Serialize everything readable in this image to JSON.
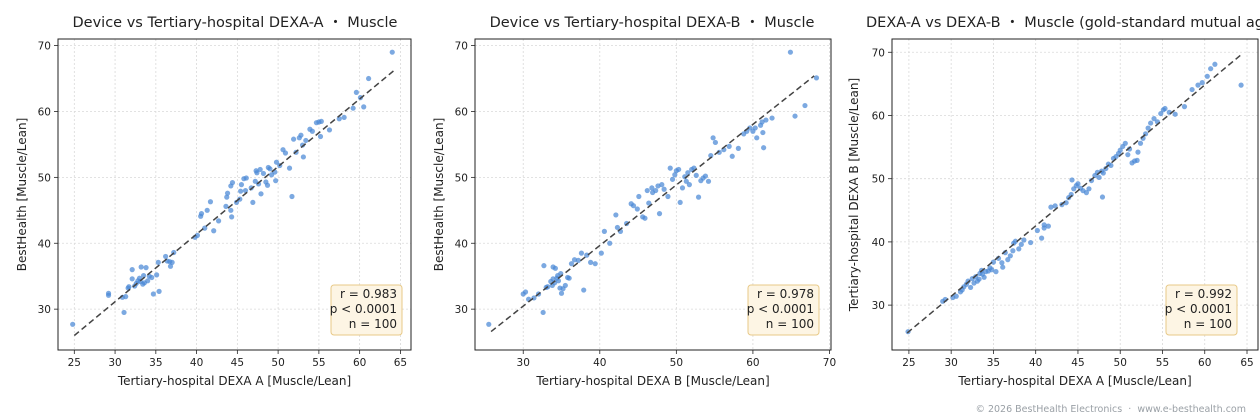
{
  "footer": {
    "copyright": "© 2026 BestHealth Electronics",
    "separator": "·",
    "website": "www.e-besthealth.com"
  },
  "style": {
    "point_color": "#4a88d6",
    "line_color": "#444444",
    "box_fill": "#fdf5e4",
    "box_stroke": "#e8c987"
  },
  "chart_data": [
    {
      "type": "scatter",
      "title": "Device vs Tertiary-hospital DEXA-A  ・  Muscle",
      "xlabel": "Tertiary-hospital DEXA A [Muscle/Lean]",
      "ylabel": "BestHealth [Muscle/Lean]",
      "xlim": [
        23.0,
        66.3
      ],
      "ylim": [
        23.8,
        71.0
      ],
      "xticks": [
        25,
        30,
        35,
        40,
        45,
        50,
        55,
        60,
        65
      ],
      "yticks": [
        30,
        40,
        50,
        60,
        70
      ],
      "grid": true,
      "identity_line": {
        "x": [
          25,
          64.2
        ],
        "y": [
          26,
          66.2
        ]
      },
      "stats": {
        "r": "r = 0.983",
        "p": "p < 0.0001",
        "n": "n = 100"
      },
      "stats_position": "bottom-right",
      "points": [
        [
          24.8,
          27.7
        ],
        [
          29.2,
          32.4
        ],
        [
          29.2,
          32.1
        ],
        [
          30.9,
          31.8
        ],
        [
          31.1,
          29.5
        ],
        [
          31.3,
          31.9
        ],
        [
          31.7,
          33.4
        ],
        [
          31.6,
          33.2
        ],
        [
          32.1,
          34.6
        ],
        [
          32.1,
          36.0
        ],
        [
          32.4,
          33.5
        ],
        [
          32.6,
          33.9
        ],
        [
          32.8,
          34.3
        ],
        [
          33.0,
          34.7
        ],
        [
          33.1,
          34.2
        ],
        [
          33.4,
          33.8
        ],
        [
          33.6,
          34.0
        ],
        [
          33.2,
          36.4
        ],
        [
          33.8,
          36.3
        ],
        [
          33.5,
          35.1
        ],
        [
          34.2,
          35.0
        ],
        [
          34.5,
          34.8
        ],
        [
          34.0,
          34.3
        ],
        [
          35.1,
          35.2
        ],
        [
          34.7,
          32.3
        ],
        [
          35.4,
          32.7
        ],
        [
          35.3,
          37.1
        ],
        [
          36.2,
          38.0
        ],
        [
          36.4,
          37.3
        ],
        [
          36.7,
          37.2
        ],
        [
          37.0,
          37.1
        ],
        [
          36.8,
          36.5
        ],
        [
          37.2,
          38.6
        ],
        [
          39.8,
          40.9
        ],
        [
          40.1,
          41.2
        ],
        [
          40.5,
          44.1
        ],
        [
          40.6,
          44.5
        ],
        [
          41.0,
          42.3
        ],
        [
          41.3,
          45.0
        ],
        [
          41.7,
          46.3
        ],
        [
          42.7,
          43.4
        ],
        [
          42.1,
          41.9
        ],
        [
          43.6,
          45.6
        ],
        [
          43.7,
          47.0
        ],
        [
          43.8,
          47.6
        ],
        [
          44.2,
          48.7
        ],
        [
          44.2,
          45.0
        ],
        [
          44.3,
          44.0
        ],
        [
          44.4,
          49.2
        ],
        [
          44.9,
          46.2
        ],
        [
          45.3,
          46.7
        ],
        [
          45.4,
          47.9
        ],
        [
          45.5,
          48.9
        ],
        [
          45.8,
          49.8
        ],
        [
          46.1,
          49.9
        ],
        [
          46.0,
          48.0
        ],
        [
          46.7,
          48.4
        ],
        [
          46.9,
          46.2
        ],
        [
          47.2,
          49.4
        ],
        [
          47.4,
          50.7
        ],
        [
          47.6,
          49.0
        ],
        [
          47.8,
          51.2
        ],
        [
          47.3,
          51.0
        ],
        [
          47.9,
          47.5
        ],
        [
          48.2,
          50.6
        ],
        [
          48.5,
          49.3
        ],
        [
          48.7,
          48.8
        ],
        [
          48.8,
          51.5
        ],
        [
          49.2,
          50.4
        ],
        [
          49.0,
          51.3
        ],
        [
          49.6,
          50.8
        ],
        [
          49.8,
          52.3
        ],
        [
          49.7,
          49.5
        ],
        [
          50.2,
          51.8
        ],
        [
          50.6,
          54.2
        ],
        [
          50.9,
          53.7
        ],
        [
          51.4,
          51.4
        ],
        [
          51.7,
          47.1
        ],
        [
          51.9,
          55.8
        ],
        [
          52.2,
          53.8
        ],
        [
          52.6,
          56.0
        ],
        [
          52.8,
          56.4
        ],
        [
          53.0,
          54.9
        ],
        [
          53.4,
          55.6
        ],
        [
          53.1,
          53.1
        ],
        [
          53.9,
          57.3
        ],
        [
          54.2,
          57.0
        ],
        [
          54.7,
          58.3
        ],
        [
          55.0,
          58.4
        ],
        [
          55.3,
          58.5
        ],
        [
          55.2,
          56.2
        ],
        [
          56.3,
          57.2
        ],
        [
          57.5,
          58.9
        ],
        [
          58.1,
          59.1
        ],
        [
          59.2,
          60.5
        ],
        [
          59.6,
          62.9
        ],
        [
          60.1,
          62.1
        ],
        [
          60.5,
          60.7
        ],
        [
          61.1,
          65.0
        ],
        [
          64.0,
          69.0
        ]
      ]
    },
    {
      "type": "scatter",
      "title": "Device vs Tertiary-hospital DEXA-B  ・  Muscle",
      "xlabel": "Tertiary-hospital DEXA B [Muscle/Lean]",
      "ylabel": "BestHealth [Muscle/Lean]",
      "xlim": [
        23.7,
        70.2
      ],
      "ylim": [
        23.8,
        71.0
      ],
      "xticks": [
        30,
        40,
        50,
        60,
        70
      ],
      "yticks": [
        30,
        40,
        50,
        60,
        70
      ],
      "grid": true,
      "identity_line": {
        "x": [
          25.8,
          68.0
        ],
        "y": [
          26.6,
          65.4
        ]
      },
      "stats": {
        "r": "r = 0.978",
        "p": "p < 0.0001",
        "n": "n = 100"
      },
      "stats_position": "bottom-right",
      "points": [
        [
          25.5,
          27.7
        ],
        [
          30.0,
          32.3
        ],
        [
          30.3,
          32.6
        ],
        [
          30.7,
          31.5
        ],
        [
          31.4,
          31.7
        ],
        [
          32.0,
          32.3
        ],
        [
          32.7,
          36.6
        ],
        [
          32.6,
          29.5
        ],
        [
          33.0,
          33.3
        ],
        [
          33.2,
          33.4
        ],
        [
          33.6,
          34.2
        ],
        [
          33.8,
          33.6
        ],
        [
          33.9,
          34.6
        ],
        [
          33.9,
          36.4
        ],
        [
          34.1,
          34.0
        ],
        [
          34.2,
          36.2
        ],
        [
          34.4,
          34.7
        ],
        [
          34.5,
          35.1
        ],
        [
          34.6,
          34.3
        ],
        [
          34.8,
          33.2
        ],
        [
          34.9,
          35.4
        ],
        [
          35.0,
          32.4
        ],
        [
          35.2,
          33.1
        ],
        [
          35.5,
          33.6
        ],
        [
          35.8,
          34.8
        ],
        [
          36.0,
          34.7
        ],
        [
          36.3,
          36.9
        ],
        [
          36.7,
          37.5
        ],
        [
          37.2,
          37.4
        ],
        [
          37.6,
          38.5
        ],
        [
          37.9,
          32.9
        ],
        [
          38.3,
          38.2
        ],
        [
          38.8,
          37.1
        ],
        [
          39.4,
          36.9
        ],
        [
          40.2,
          38.5
        ],
        [
          40.6,
          41.8
        ],
        [
          41.3,
          40.0
        ],
        [
          42.1,
          44.3
        ],
        [
          42.3,
          42.4
        ],
        [
          42.7,
          41.8
        ],
        [
          43.5,
          43.0
        ],
        [
          44.1,
          46.0
        ],
        [
          44.4,
          45.7
        ],
        [
          44.9,
          45.2
        ],
        [
          45.1,
          47.1
        ],
        [
          45.6,
          44.0
        ],
        [
          45.9,
          43.8
        ],
        [
          46.2,
          48.0
        ],
        [
          46.4,
          46.1
        ],
        [
          46.8,
          48.4
        ],
        [
          46.9,
          47.7
        ],
        [
          47.3,
          48.0
        ],
        [
          47.6,
          48.7
        ],
        [
          47.8,
          44.5
        ],
        [
          48.1,
          48.9
        ],
        [
          48.4,
          48.2
        ],
        [
          48.9,
          47.1
        ],
        [
          49.2,
          51.4
        ],
        [
          49.5,
          49.7
        ],
        [
          49.8,
          50.4
        ],
        [
          50.0,
          51.0
        ],
        [
          50.3,
          51.2
        ],
        [
          50.5,
          46.2
        ],
        [
          50.8,
          48.4
        ],
        [
          51.1,
          50.1
        ],
        [
          51.3,
          49.4
        ],
        [
          51.5,
          50.7
        ],
        [
          51.7,
          48.9
        ],
        [
          52.0,
          51.2
        ],
        [
          52.3,
          51.4
        ],
        [
          52.6,
          50.3
        ],
        [
          52.9,
          47.0
        ],
        [
          53.2,
          49.5
        ],
        [
          53.5,
          49.9
        ],
        [
          53.8,
          50.2
        ],
        [
          54.2,
          49.4
        ],
        [
          54.5,
          53.3
        ],
        [
          54.8,
          56.0
        ],
        [
          55.1,
          55.3
        ],
        [
          55.6,
          53.8
        ],
        [
          56.2,
          54.2
        ],
        [
          56.9,
          54.7
        ],
        [
          57.3,
          53.2
        ],
        [
          58.1,
          54.4
        ],
        [
          58.8,
          56.6
        ],
        [
          59.2,
          57.0
        ],
        [
          59.6,
          57.5
        ],
        [
          60.0,
          57.0
        ],
        [
          60.3,
          57.5
        ],
        [
          60.5,
          56.0
        ],
        [
          61.0,
          57.9
        ],
        [
          61.2,
          58.4
        ],
        [
          61.7,
          58.7
        ],
        [
          61.3,
          56.8
        ],
        [
          61.4,
          54.5
        ],
        [
          62.5,
          59.0
        ],
        [
          64.9,
          69.0
        ],
        [
          65.5,
          59.3
        ],
        [
          66.8,
          60.9
        ],
        [
          68.3,
          65.1
        ]
      ]
    },
    {
      "type": "scatter",
      "title": "DEXA-A vs DEXA-B  ・  Muscle (gold-standard mutual agreement)",
      "xlabel": "Tertiary-hospital DEXA A [Muscle/Lean]",
      "ylabel": "Tertiary-hospital DEXA B [Muscle/Lean]",
      "xlim": [
        23.0,
        66.3
      ],
      "ylim": [
        22.9,
        72.1
      ],
      "xticks": [
        25,
        30,
        35,
        40,
        45,
        50,
        55,
        60,
        65
      ],
      "yticks": [
        30,
        40,
        50,
        60,
        70
      ],
      "grid": true,
      "identity_line": {
        "x": [
          24.8,
          64.2
        ],
        "y": [
          25.6,
          69.5
        ]
      },
      "stats": {
        "r": "r = 0.992",
        "p": "p < 0.0001",
        "n": "n = 100"
      },
      "stats_position": "bottom-right",
      "points": [
        [
          24.9,
          25.8
        ],
        [
          29.0,
          30.6
        ],
        [
          29.3,
          30.9
        ],
        [
          30.2,
          31.2
        ],
        [
          30.6,
          31.4
        ],
        [
          31.1,
          32.1
        ],
        [
          31.3,
          32.4
        ],
        [
          31.5,
          32.9
        ],
        [
          31.8,
          33.3
        ],
        [
          32.0,
          33.8
        ],
        [
          32.3,
          32.8
        ],
        [
          32.5,
          34.2
        ],
        [
          32.7,
          33.5
        ],
        [
          32.9,
          34.5
        ],
        [
          33.1,
          33.8
        ],
        [
          33.3,
          34.1
        ],
        [
          33.4,
          35.0
        ],
        [
          33.6,
          35.5
        ],
        [
          33.9,
          34.4
        ],
        [
          34.1,
          35.3
        ],
        [
          34.4,
          35.4
        ],
        [
          34.6,
          35.9
        ],
        [
          34.8,
          35.6
        ],
        [
          35.0,
          36.8
        ],
        [
          35.3,
          35.3
        ],
        [
          35.6,
          37.4
        ],
        [
          36.0,
          36.7
        ],
        [
          36.4,
          38.3
        ],
        [
          36.7,
          37.2
        ],
        [
          37.0,
          37.8
        ],
        [
          37.3,
          38.6
        ],
        [
          37.4,
          39.8
        ],
        [
          37.6,
          40.1
        ],
        [
          38.0,
          38.9
        ],
        [
          38.3,
          39.6
        ],
        [
          39.4,
          39.9
        ],
        [
          40.2,
          41.8
        ],
        [
          40.7,
          40.6
        ],
        [
          41.0,
          42.2
        ],
        [
          41.5,
          42.5
        ],
        [
          41.8,
          45.5
        ],
        [
          42.3,
          45.7
        ],
        [
          43.1,
          45.9
        ],
        [
          43.6,
          46.2
        ],
        [
          43.9,
          47.0
        ],
        [
          44.2,
          47.5
        ],
        [
          44.5,
          48.4
        ],
        [
          44.8,
          48.9
        ],
        [
          45.0,
          49.2
        ],
        [
          45.3,
          48.5
        ],
        [
          45.6,
          48.1
        ],
        [
          46.0,
          47.8
        ],
        [
          46.3,
          48.4
        ],
        [
          46.6,
          49.7
        ],
        [
          47.0,
          50.5
        ],
        [
          47.3,
          51.0
        ],
        [
          47.5,
          50.2
        ],
        [
          47.8,
          51.2
        ],
        [
          48.0,
          50.9
        ],
        [
          48.3,
          51.6
        ],
        [
          48.6,
          52.3
        ],
        [
          48.9,
          52.1
        ],
        [
          49.2,
          53.2
        ],
        [
          49.5,
          53.5
        ],
        [
          49.8,
          54.0
        ],
        [
          50.0,
          54.5
        ],
        [
          50.3,
          55.1
        ],
        [
          50.6,
          55.6
        ],
        [
          50.9,
          53.8
        ],
        [
          51.1,
          54.7
        ],
        [
          51.4,
          52.5
        ],
        [
          51.7,
          52.8
        ],
        [
          52.0,
          52.9
        ],
        [
          52.4,
          55.6
        ],
        [
          52.7,
          56.4
        ],
        [
          53.0,
          57.1
        ],
        [
          53.3,
          58.0
        ],
        [
          53.6,
          58.8
        ],
        [
          54.0,
          59.5
        ],
        [
          54.4,
          59.0
        ],
        [
          54.8,
          60.3
        ],
        [
          55.1,
          60.9
        ],
        [
          55.3,
          61.1
        ],
        [
          55.8,
          60.5
        ],
        [
          56.5,
          60.2
        ],
        [
          57.6,
          61.4
        ],
        [
          58.5,
          64.1
        ],
        [
          59.2,
          64.8
        ],
        [
          59.7,
          65.2
        ],
        [
          60.3,
          66.2
        ],
        [
          60.7,
          67.4
        ],
        [
          61.2,
          68.1
        ],
        [
          52.1,
          54.2
        ],
        [
          47.9,
          47.1
        ],
        [
          44.3,
          49.8
        ],
        [
          41.0,
          42.7
        ],
        [
          38.6,
          40.3
        ],
        [
          36.1,
          36.0
        ],
        [
          33.7,
          34.9
        ],
        [
          64.3,
          64.8
        ]
      ]
    }
  ]
}
